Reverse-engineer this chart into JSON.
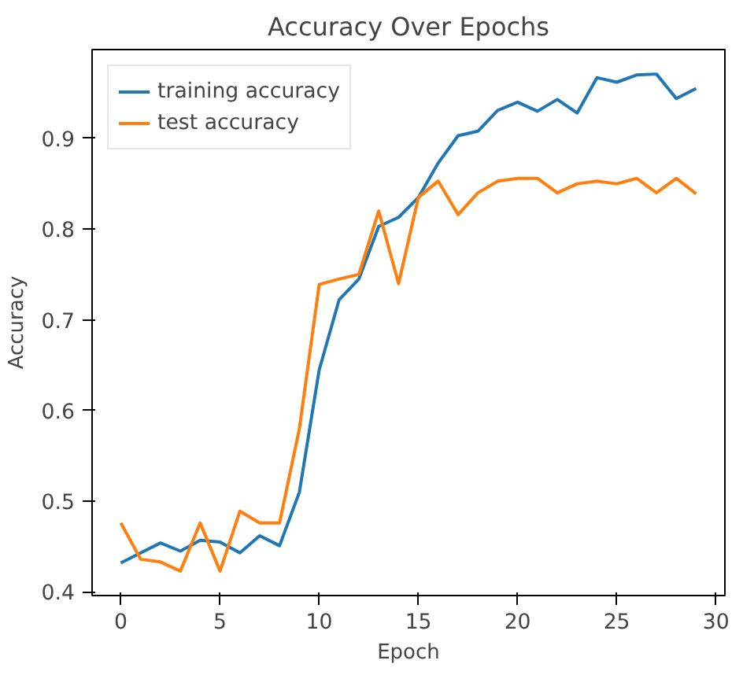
{
  "chart_data": {
    "type": "line",
    "title": "Accuracy Over Epochs",
    "xlabel": "Epoch",
    "ylabel": "Accuracy",
    "x": [
      0,
      1,
      2,
      3,
      4,
      5,
      6,
      7,
      8,
      9,
      10,
      11,
      12,
      13,
      14,
      15,
      16,
      17,
      18,
      19,
      20,
      21,
      22,
      23,
      24,
      25,
      26,
      27,
      28,
      29
    ],
    "series": [
      {
        "name": "training accuracy",
        "color": "#1f77b4",
        "values": [
          0.432,
          0.443,
          0.454,
          0.445,
          0.457,
          0.455,
          0.443,
          0.462,
          0.451,
          0.51,
          0.645,
          0.722,
          0.745,
          0.803,
          0.813,
          0.835,
          0.873,
          0.903,
          0.908,
          0.931,
          0.94,
          0.93,
          0.943,
          0.928,
          0.967,
          0.962,
          0.97,
          0.971,
          0.944,
          0.955
        ]
      },
      {
        "name": "test accuracy",
        "color": "#ff7f0e",
        "values": [
          0.476,
          0.436,
          0.433,
          0.423,
          0.476,
          0.423,
          0.489,
          0.476,
          0.476,
          0.58,
          0.739,
          0.745,
          0.75,
          0.82,
          0.74,
          0.835,
          0.853,
          0.816,
          0.84,
          0.853,
          0.856,
          0.856,
          0.84,
          0.85,
          0.853,
          0.85,
          0.856,
          0.84,
          0.856,
          0.839
        ]
      }
    ],
    "xlim": [
      -1.45,
      30.45
    ],
    "ylim": [
      0.396,
      0.998
    ],
    "xticks": [
      0,
      5,
      10,
      15,
      20,
      25,
      30
    ],
    "yticks": [
      0.4,
      0.5,
      0.6,
      0.7,
      0.8,
      0.9
    ],
    "grid": false,
    "legend": "top left",
    "line_style": "solid"
  }
}
